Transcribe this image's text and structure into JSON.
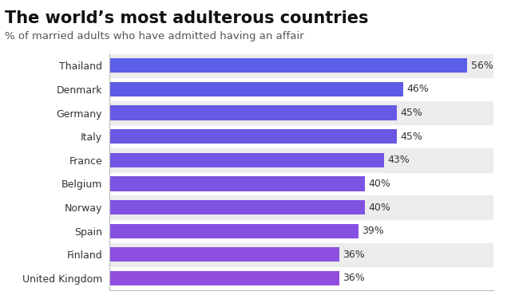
{
  "chart_data": {
    "type": "bar",
    "orientation": "horizontal",
    "title": "The world’s most adulterous countries",
    "subtitle": "% of married adults who have admitted having an affair",
    "categories": [
      "Thailand",
      "Denmark",
      "Germany",
      "Italy",
      "France",
      "Belgium",
      "Norway",
      "Spain",
      "Finland",
      "United Kingdom"
    ],
    "values": [
      56,
      46,
      45,
      45,
      43,
      40,
      40,
      39,
      36,
      36
    ],
    "value_labels": [
      "56%",
      "46%",
      "45%",
      "45%",
      "43%",
      "40%",
      "40%",
      "39%",
      "36%",
      "36%"
    ],
    "colors": [
      "#5a5ee8",
      "#5f5be6",
      "#6659e5",
      "#6a58e4",
      "#7256e3",
      "#7a54e2",
      "#8052e1",
      "#8551e0",
      "#8c4fdf",
      "#914ede"
    ],
    "xlim": [
      0,
      60
    ],
    "data_labels": true,
    "tick_labels": "y",
    "grid": false
  }
}
